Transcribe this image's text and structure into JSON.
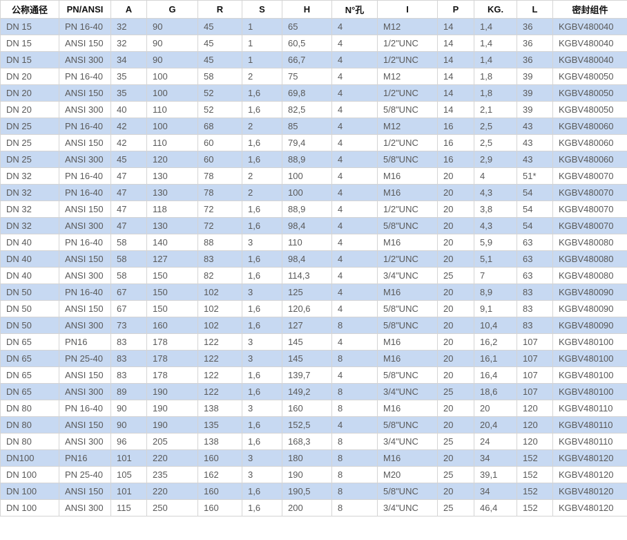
{
  "table": {
    "columns": [
      "公称通径",
      "PN/ANSI",
      "A",
      "G",
      "R",
      "S",
      "H",
      "N°孔",
      "I",
      "P",
      "KG.",
      "L",
      "密封组件"
    ],
    "rows": [
      [
        "DN 15",
        "PN 16-40",
        "32",
        "90",
        "45",
        "1",
        "65",
        "4",
        "M12",
        "14",
        "1,4",
        "36",
        "KGBV480040"
      ],
      [
        "DN 15",
        "ANSI 150",
        "32",
        "90",
        "45",
        "1",
        "60,5",
        "4",
        "1/2\"UNC",
        "14",
        "1,4",
        "36",
        "KGBV480040"
      ],
      [
        "DN 15",
        "ANSI 300",
        "34",
        "90",
        "45",
        "1",
        "66,7",
        "4",
        "1/2\"UNC",
        "14",
        "1,4",
        "36",
        "KGBV480040"
      ],
      [
        "DN 20",
        "PN 16-40",
        "35",
        "100",
        "58",
        "2",
        "75",
        "4",
        "M12",
        "14",
        "1,8",
        "39",
        "KGBV480050"
      ],
      [
        "DN 20",
        "ANSI 150",
        "35",
        "100",
        "52",
        "1,6",
        "69,8",
        "4",
        "1/2\"UNC",
        "14",
        "1,8",
        "39",
        "KGBV480050"
      ],
      [
        "DN 20",
        "ANSI 300",
        "40",
        "110",
        "52",
        "1,6",
        "82,5",
        "4",
        "5/8\"UNC",
        "14",
        "2,1",
        "39",
        "KGBV480050"
      ],
      [
        "DN 25",
        "PN 16-40",
        "42",
        "100",
        "68",
        "2",
        "85",
        "4",
        "M12",
        "16",
        "2,5",
        "43",
        "KGBV480060"
      ],
      [
        "DN 25",
        "ANSI 150",
        "42",
        "110",
        "60",
        "1,6",
        "79,4",
        "4",
        "1/2\"UNC",
        "16",
        "2,5",
        "43",
        "KGBV480060"
      ],
      [
        "DN 25",
        "ANSI 300",
        "45",
        "120",
        "60",
        "1,6",
        "88,9",
        "4",
        "5/8\"UNC",
        "16",
        "2,9",
        "43",
        "KGBV480060"
      ],
      [
        "DN 32",
        "PN 16-40",
        "47",
        "130",
        "78",
        "2",
        "100",
        "4",
        "M16",
        "20",
        "4",
        "51*",
        "KGBV480070"
      ],
      [
        "DN 32",
        "PN 16-40",
        "47",
        "130",
        "78",
        "2",
        "100",
        "4",
        "M16",
        "20",
        "4,3",
        "54",
        "KGBV480070"
      ],
      [
        "DN 32",
        "ANSI 150",
        "47",
        "118",
        "72",
        "1,6",
        "88,9",
        "4",
        "1/2\"UNC",
        "20",
        "3,8",
        "54",
        "KGBV480070"
      ],
      [
        "DN 32",
        "ANSI 300",
        "47",
        "130",
        "72",
        "1,6",
        "98,4",
        "4",
        "5/8\"UNC",
        "20",
        "4,3",
        "54",
        "KGBV480070"
      ],
      [
        "DN 40",
        "PN 16-40",
        "58",
        "140",
        "88",
        "3",
        "110",
        "4",
        "M16",
        "20",
        "5,9",
        "63",
        "KGBV480080"
      ],
      [
        "DN 40",
        "ANSI 150",
        "58",
        "127",
        "83",
        "1,6",
        "98,4",
        "4",
        "1/2\"UNC",
        "20",
        "5,1",
        "63",
        "KGBV480080"
      ],
      [
        "DN 40",
        "ANSI 300",
        "58",
        "150",
        "82",
        "1,6",
        "114,3",
        "4",
        "3/4\"UNC",
        "25",
        "7",
        "63",
        "KGBV480080"
      ],
      [
        "DN 50",
        "PN 16-40",
        "67",
        "150",
        "102",
        "3",
        "125",
        "4",
        "M16",
        "20",
        "8,9",
        "83",
        "KGBV480090"
      ],
      [
        "DN 50",
        "ANSI 150",
        "67",
        "150",
        "102",
        "1,6",
        "120,6",
        "4",
        "5/8\"UNC",
        "20",
        "9,1",
        "83",
        "KGBV480090"
      ],
      [
        "DN 50",
        "ANSI 300",
        "73",
        "160",
        "102",
        "1,6",
        "127",
        "8",
        "5/8\"UNC",
        "20",
        "10,4",
        "83",
        "KGBV480090"
      ],
      [
        "DN 65",
        "PN16",
        "83",
        "178",
        "122",
        "3",
        "145",
        "4",
        "M16",
        "20",
        "16,2",
        "107",
        "KGBV480100"
      ],
      [
        "DN 65",
        "PN 25-40",
        "83",
        "178",
        "122",
        "3",
        "145",
        "8",
        "M16",
        "20",
        "16,1",
        "107",
        "KGBV480100"
      ],
      [
        "DN 65",
        "ANSI 150",
        "83",
        "178",
        "122",
        "1,6",
        "139,7",
        "4",
        "5/8\"UNC",
        "20",
        "16,4",
        "107",
        "KGBV480100"
      ],
      [
        "DN 65",
        "ANSI 300",
        "89",
        "190",
        "122",
        "1,6",
        "149,2",
        "8",
        "3/4\"UNC",
        "25",
        "18,6",
        "107",
        "KGBV480100"
      ],
      [
        "DN 80",
        "PN 16-40",
        "90",
        "190",
        "138",
        "3",
        "160",
        "8",
        "M16",
        "20",
        "20",
        "120",
        "KGBV480110"
      ],
      [
        "DN 80",
        "ANSI 150",
        "90",
        "190",
        "135",
        "1,6",
        "152,5",
        "4",
        "5/8\"UNC",
        "20",
        "20,4",
        "120",
        "KGBV480110"
      ],
      [
        "DN 80",
        "ANSI 300",
        "96",
        "205",
        "138",
        "1,6",
        "168,3",
        "8",
        "3/4\"UNC",
        "25",
        "24",
        "120",
        "KGBV480110"
      ],
      [
        "DN100",
        "PN16",
        "101",
        "220",
        "160",
        "3",
        "180",
        "8",
        "M16",
        "20",
        "34",
        "152",
        "KGBV480120"
      ],
      [
        "DN 100",
        "PN 25-40",
        "105",
        "235",
        "162",
        "3",
        "190",
        "8",
        "M20",
        "25",
        "39,1",
        "152",
        "KGBV480120"
      ],
      [
        "DN 100",
        "ANSI 150",
        "101",
        "220",
        "160",
        "1,6",
        "190,5",
        "8",
        "5/8\"UNC",
        "20",
        "34",
        "152",
        "KGBV480120"
      ],
      [
        "DN 100",
        "ANSI 300",
        "115",
        "250",
        "160",
        "1,6",
        "200",
        "8",
        "3/4\"UNC",
        "25",
        "46,4",
        "152",
        "KGBV480120"
      ]
    ],
    "colors": {
      "stripe": "#c7d9f2",
      "row_alt": "#ffffff",
      "border": "#d4d4d4",
      "header_text": "#111111",
      "body_text": "#595959"
    }
  }
}
